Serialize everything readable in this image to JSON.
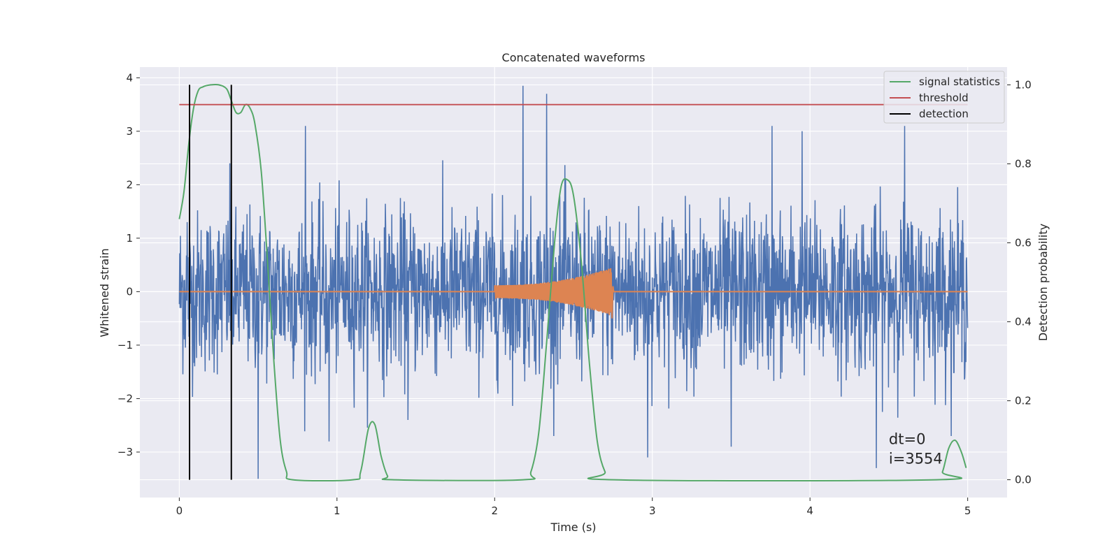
{
  "chart_data": {
    "type": "line",
    "title": "Concatenated waveforms",
    "xlabel": "Time (s)",
    "ylabel": "Whitened strain",
    "y2label": "Detection probability",
    "xlim": [
      -0.25,
      5.25
    ],
    "ylim": [
      -3.85,
      4.2
    ],
    "y2lim": [
      -0.045,
      1.045
    ],
    "xticks": [
      0,
      1,
      2,
      3,
      4,
      5
    ],
    "xtick_labels": [
      "0",
      "1",
      "2",
      "3",
      "4",
      "5"
    ],
    "yticks": [
      -3,
      -2,
      -1,
      0,
      1,
      2,
      3,
      4
    ],
    "ytick_labels": [
      "−3",
      "−2",
      "−1",
      "0",
      "1",
      "2",
      "3",
      "4"
    ],
    "y2ticks": [
      0.0,
      0.2,
      0.4,
      0.6,
      0.8,
      1.0
    ],
    "y2tick_labels": [
      "0.0",
      "0.2",
      "0.4",
      "0.6",
      "0.8",
      "1.0"
    ],
    "grid": true,
    "legend_position": "top-right",
    "colors": {
      "strain": "#4c72b0",
      "waveform": "#dd8452",
      "signal_statistics": "#55a868",
      "threshold": "#c44e52",
      "detection": "#000000",
      "axes_background": "#eaeaf2",
      "grid": "#ffffff"
    },
    "series": [
      {
        "name": "",
        "axis": "left",
        "style": "noise",
        "x_range": [
          0,
          5
        ],
        "amplitude_std": 0.75,
        "peaks": [
          {
            "x": 0.05,
            "y": 1.3
          },
          {
            "x": 0.32,
            "y": 2.4
          },
          {
            "x": 0.5,
            "y": -3.5
          },
          {
            "x": 0.8,
            "y": 3.1
          },
          {
            "x": 0.95,
            "y": -2.8
          },
          {
            "x": 1.45,
            "y": -2.4
          },
          {
            "x": 2.18,
            "y": 3.85
          },
          {
            "x": 2.33,
            "y": 3.7
          },
          {
            "x": 2.45,
            "y": 2.1
          },
          {
            "x": 2.97,
            "y": -3.1
          },
          {
            "x": 3.5,
            "y": -2.9
          },
          {
            "x": 3.76,
            "y": 3.1
          },
          {
            "x": 3.95,
            "y": 3.0
          },
          {
            "x": 4.42,
            "y": -3.3
          },
          {
            "x": 4.6,
            "y": 3.1
          }
        ]
      },
      {
        "name": "",
        "axis": "left",
        "style": "chirp",
        "x_range": [
          0,
          5
        ],
        "chirp_start": 2.0,
        "chirp_end": 2.74,
        "amplitude_start": 0.12,
        "amplitude_end": 0.45,
        "baseline": 0
      },
      {
        "name": "signal statistics",
        "axis": "right",
        "points": [
          [
            0.0,
            0.66
          ],
          [
            0.03,
            0.73
          ],
          [
            0.06,
            0.85
          ],
          [
            0.09,
            0.94
          ],
          [
            0.12,
            0.985
          ],
          [
            0.15,
            0.995
          ],
          [
            0.2,
            1.0
          ],
          [
            0.25,
            1.0
          ],
          [
            0.3,
            0.99
          ],
          [
            0.33,
            0.96
          ],
          [
            0.36,
            0.93
          ],
          [
            0.39,
            0.93
          ],
          [
            0.42,
            0.95
          ],
          [
            0.45,
            0.94
          ],
          [
            0.48,
            0.9
          ],
          [
            0.52,
            0.78
          ],
          [
            0.56,
            0.55
          ],
          [
            0.6,
            0.3
          ],
          [
            0.64,
            0.1
          ],
          [
            0.68,
            0.02
          ],
          [
            0.72,
            0.0
          ],
          [
            1.1,
            0.0
          ],
          [
            1.15,
            0.02
          ],
          [
            1.2,
            0.13
          ],
          [
            1.24,
            0.14
          ],
          [
            1.28,
            0.06
          ],
          [
            1.32,
            0.01
          ],
          [
            1.36,
            0.0
          ],
          [
            2.18,
            0.0
          ],
          [
            2.23,
            0.02
          ],
          [
            2.28,
            0.12
          ],
          [
            2.33,
            0.35
          ],
          [
            2.38,
            0.6
          ],
          [
            2.42,
            0.74
          ],
          [
            2.46,
            0.76
          ],
          [
            2.5,
            0.72
          ],
          [
            2.55,
            0.55
          ],
          [
            2.6,
            0.3
          ],
          [
            2.65,
            0.1
          ],
          [
            2.7,
            0.02
          ],
          [
            2.76,
            0.0
          ],
          [
            4.8,
            0.0
          ],
          [
            4.84,
            0.02
          ],
          [
            4.88,
            0.08
          ],
          [
            4.92,
            0.1
          ],
          [
            4.96,
            0.07
          ],
          [
            4.99,
            0.03
          ]
        ]
      },
      {
        "name": "threshold",
        "axis": "right",
        "points": [
          [
            0,
            0.95
          ],
          [
            5,
            0.95
          ]
        ]
      },
      {
        "name": "detection",
        "axis": "right",
        "vlines": [
          0.065,
          0.33
        ],
        "vline_range": [
          0.0,
          1.0
        ]
      }
    ],
    "annotation": {
      "lines": [
        "dt=0",
        "i=3554"
      ],
      "x": 4.5,
      "y": -2.85
    }
  }
}
